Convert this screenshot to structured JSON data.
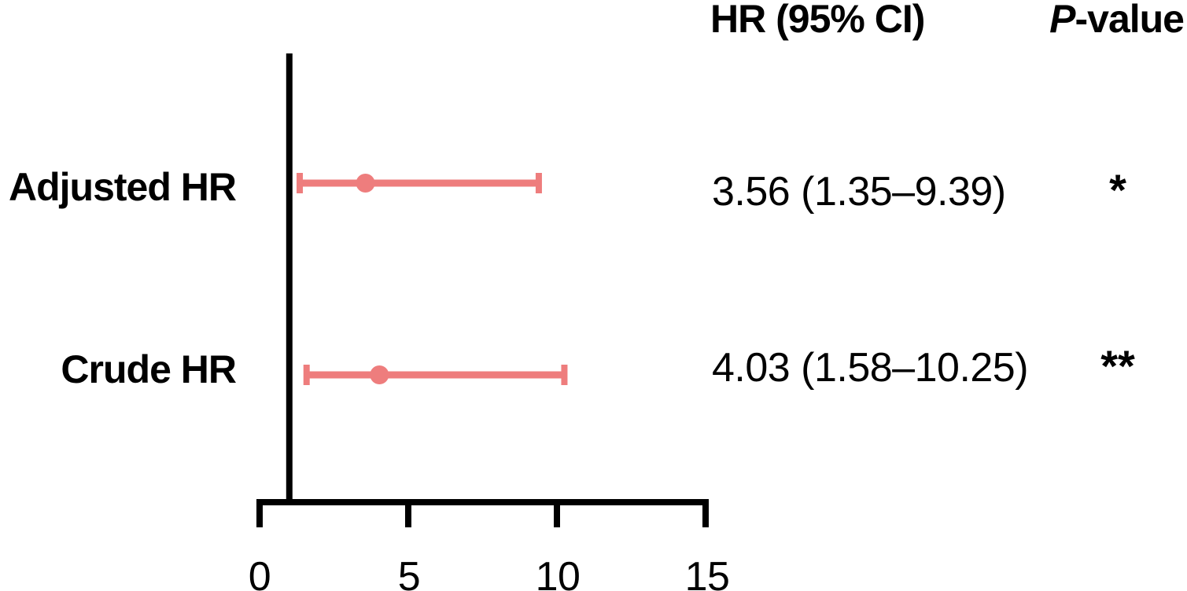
{
  "colors": {
    "marker": "#ee7d7d",
    "axis": "#000000",
    "text": "#000000",
    "background": "#ffffff"
  },
  "header": {
    "hr_ci_label": "HR (95% CI)",
    "p_value_italic": "P",
    "p_value_rest": "-value"
  },
  "chart_data": {
    "type": "forest",
    "title": "",
    "xlabel": "",
    "ylabel": "",
    "x_axis": {
      "range": [
        0,
        15
      ],
      "ticks": [
        0,
        5,
        10,
        15
      ],
      "tick_labels": [
        "0",
        "5",
        "10",
        "15"
      ],
      "reference_line": 1,
      "grid": false
    },
    "rows": [
      {
        "label": "Adjusted HR",
        "hr": 3.56,
        "ci_low": 1.35,
        "ci_high": 9.39,
        "hr_ci_text": "3.56 (1.35–9.39)",
        "p_label": "*"
      },
      {
        "label": "Crude HR",
        "hr": 4.03,
        "ci_low": 1.58,
        "ci_high": 10.25,
        "hr_ci_text": "4.03 (1.58–10.25)",
        "p_label": "**"
      }
    ]
  }
}
